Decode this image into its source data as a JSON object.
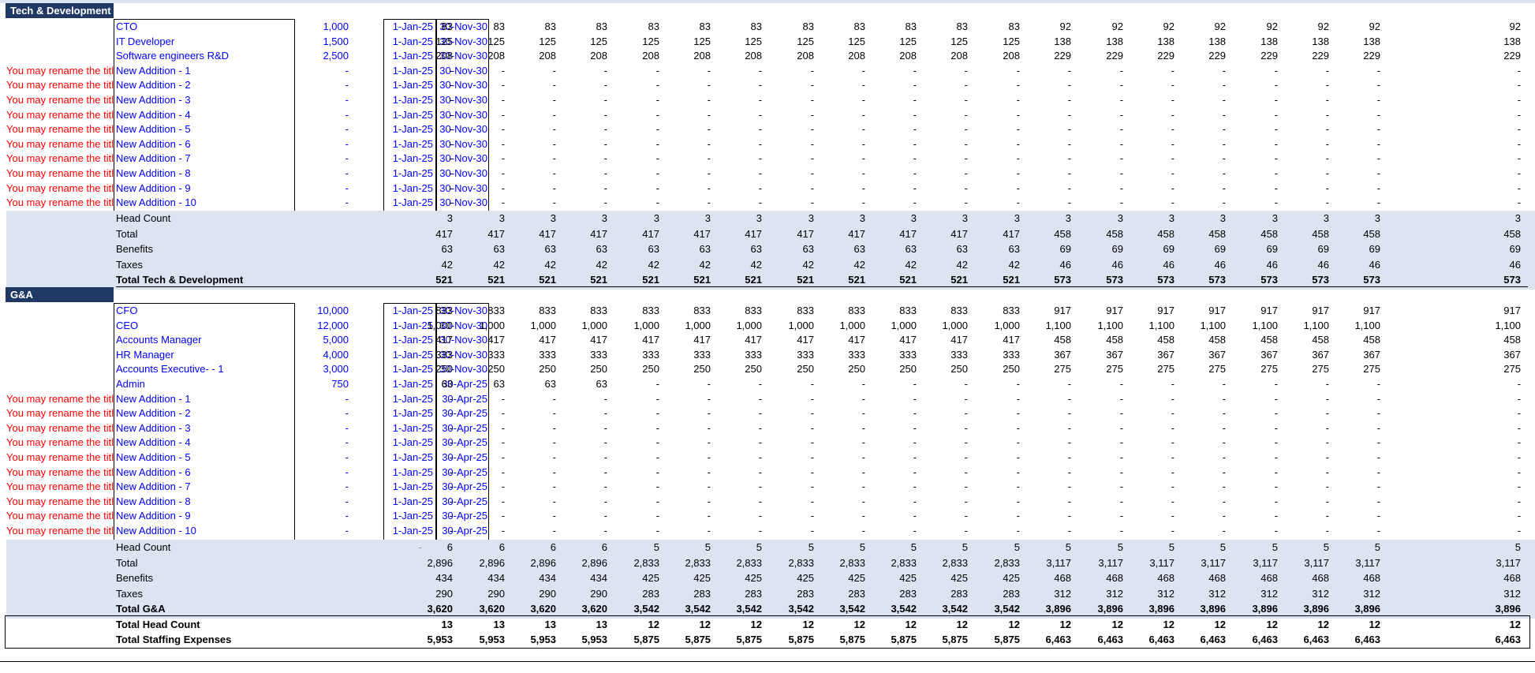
{
  "row_label_hint": "You may rename the title here",
  "sections": [
    {
      "title": "Tech & Development",
      "roles": [
        {
          "name": "CTO",
          "salary": "1,000",
          "start": "1-Jan-25",
          "end": "30-Nov-30",
          "values": [
            "83",
            "83",
            "83",
            "83",
            "83",
            "83",
            "83",
            "83",
            "83",
            "83",
            "83",
            "83",
            "92",
            "92",
            "92",
            "92",
            "92",
            "92",
            "92",
            "92"
          ]
        },
        {
          "name": "IT Developer",
          "salary": "1,500",
          "start": "1-Jan-25",
          "end": "30-Nov-30",
          "values": [
            "125",
            "125",
            "125",
            "125",
            "125",
            "125",
            "125",
            "125",
            "125",
            "125",
            "125",
            "125",
            "138",
            "138",
            "138",
            "138",
            "138",
            "138",
            "138",
            "138"
          ]
        },
        {
          "name": "Software engineers R&D",
          "salary": "2,500",
          "start": "1-Jan-25",
          "end": "30-Nov-30",
          "values": [
            "208",
            "208",
            "208",
            "208",
            "208",
            "208",
            "208",
            "208",
            "208",
            "208",
            "208",
            "208",
            "229",
            "229",
            "229",
            "229",
            "229",
            "229",
            "229",
            "229"
          ]
        },
        {
          "name": "New Addition - 1",
          "salary": "-",
          "start": "1-Jan-25",
          "end": "30-Nov-30",
          "hint": true
        },
        {
          "name": "New Addition - 2",
          "salary": "-",
          "start": "1-Jan-25",
          "end": "30-Nov-30",
          "hint": true
        },
        {
          "name": "New Addition - 3",
          "salary": "-",
          "start": "1-Jan-25",
          "end": "30-Nov-30",
          "hint": true
        },
        {
          "name": "New Addition - 4",
          "salary": "-",
          "start": "1-Jan-25",
          "end": "30-Nov-30",
          "hint": true
        },
        {
          "name": "New Addition - 5",
          "salary": "-",
          "start": "1-Jan-25",
          "end": "30-Nov-30",
          "hint": true
        },
        {
          "name": "New Addition - 6",
          "salary": "-",
          "start": "1-Jan-25",
          "end": "30-Nov-30",
          "hint": true
        },
        {
          "name": "New Addition - 7",
          "salary": "-",
          "start": "1-Jan-25",
          "end": "30-Nov-30",
          "hint": true
        },
        {
          "name": "New Addition - 8",
          "salary": "-",
          "start": "1-Jan-25",
          "end": "30-Nov-30",
          "hint": true
        },
        {
          "name": "New Addition - 9",
          "salary": "-",
          "start": "1-Jan-25",
          "end": "30-Nov-30",
          "hint": true
        },
        {
          "name": "New Addition - 10",
          "salary": "-",
          "start": "1-Jan-25",
          "end": "30-Nov-30",
          "hint": true
        }
      ],
      "summary": [
        {
          "label": "Head Count",
          "values": [
            "3",
            "3",
            "3",
            "3",
            "3",
            "3",
            "3",
            "3",
            "3",
            "3",
            "3",
            "3",
            "3",
            "3",
            "3",
            "3",
            "3",
            "3",
            "3",
            "3"
          ]
        },
        {
          "label": "Total",
          "values": [
            "417",
            "417",
            "417",
            "417",
            "417",
            "417",
            "417",
            "417",
            "417",
            "417",
            "417",
            "417",
            "458",
            "458",
            "458",
            "458",
            "458",
            "458",
            "458",
            "458"
          ]
        },
        {
          "label": "Benefits",
          "values": [
            "63",
            "63",
            "63",
            "63",
            "63",
            "63",
            "63",
            "63",
            "63",
            "63",
            "63",
            "63",
            "69",
            "69",
            "69",
            "69",
            "69",
            "69",
            "69",
            "69"
          ]
        },
        {
          "label": "Taxes",
          "values": [
            "42",
            "42",
            "42",
            "42",
            "42",
            "42",
            "42",
            "42",
            "42",
            "42",
            "42",
            "42",
            "46",
            "46",
            "46",
            "46",
            "46",
            "46",
            "46",
            "46"
          ]
        },
        {
          "label": "Total Tech & Development",
          "bold": true,
          "values": [
            "521",
            "521",
            "521",
            "521",
            "521",
            "521",
            "521",
            "521",
            "521",
            "521",
            "521",
            "521",
            "573",
            "573",
            "573",
            "573",
            "573",
            "573",
            "573",
            "573"
          ]
        }
      ]
    },
    {
      "title": "G&A",
      "roles": [
        {
          "name": "CFO",
          "salary": "10,000",
          "start": "1-Jan-25",
          "end": "30-Nov-30",
          "values": [
            "833",
            "833",
            "833",
            "833",
            "833",
            "833",
            "833",
            "833",
            "833",
            "833",
            "833",
            "833",
            "917",
            "917",
            "917",
            "917",
            "917",
            "917",
            "917",
            "917"
          ]
        },
        {
          "name": "CEO",
          "salary": "12,000",
          "start": "1-Jan-25",
          "end": "30-Nov-30",
          "values": [
            "1,000",
            "1,000",
            "1,000",
            "1,000",
            "1,000",
            "1,000",
            "1,000",
            "1,000",
            "1,000",
            "1,000",
            "1,000",
            "1,000",
            "1,100",
            "1,100",
            "1,100",
            "1,100",
            "1,100",
            "1,100",
            "1,100",
            "1,100"
          ]
        },
        {
          "name": "Accounts Manager",
          "salary": "5,000",
          "start": "1-Jan-25",
          "end": "30-Nov-30",
          "values": [
            "417",
            "417",
            "417",
            "417",
            "417",
            "417",
            "417",
            "417",
            "417",
            "417",
            "417",
            "417",
            "458",
            "458",
            "458",
            "458",
            "458",
            "458",
            "458",
            "458"
          ]
        },
        {
          "name": "HR Manager",
          "salary": "4,000",
          "start": "1-Jan-25",
          "end": "30-Nov-30",
          "values": [
            "333",
            "333",
            "333",
            "333",
            "333",
            "333",
            "333",
            "333",
            "333",
            "333",
            "333",
            "333",
            "367",
            "367",
            "367",
            "367",
            "367",
            "367",
            "367",
            "367"
          ]
        },
        {
          "name": "Accounts Executive- - 1",
          "salary": "3,000",
          "start": "1-Jan-25",
          "end": "30-Nov-30",
          "values": [
            "250",
            "250",
            "250",
            "250",
            "250",
            "250",
            "250",
            "250",
            "250",
            "250",
            "250",
            "250",
            "275",
            "275",
            "275",
            "275",
            "275",
            "275",
            "275",
            "275"
          ]
        },
        {
          "name": "Admin",
          "salary": "750",
          "start": "1-Jan-25",
          "end": "30-Apr-25",
          "values": [
            "63",
            "63",
            "63",
            "63"
          ]
        },
        {
          "name": "New Addition - 1",
          "salary": "-",
          "start": "1-Jan-25",
          "end": "30-Apr-25",
          "hint": true
        },
        {
          "name": "New Addition - 2",
          "salary": "-",
          "start": "1-Jan-25",
          "end": "30-Apr-25",
          "hint": true
        },
        {
          "name": "New Addition - 3",
          "salary": "-",
          "start": "1-Jan-25",
          "end": "30-Apr-25",
          "hint": true
        },
        {
          "name": "New Addition - 4",
          "salary": "-",
          "start": "1-Jan-25",
          "end": "30-Apr-25",
          "hint": true
        },
        {
          "name": "New Addition - 5",
          "salary": "-",
          "start": "1-Jan-25",
          "end": "30-Apr-25",
          "hint": true
        },
        {
          "name": "New Addition - 6",
          "salary": "-",
          "start": "1-Jan-25",
          "end": "30-Apr-25",
          "hint": true
        },
        {
          "name": "New Addition - 7",
          "salary": "-",
          "start": "1-Jan-25",
          "end": "30-Apr-25",
          "hint": true
        },
        {
          "name": "New Addition - 8",
          "salary": "-",
          "start": "1-Jan-25",
          "end": "30-Apr-25",
          "hint": true
        },
        {
          "name": "New Addition - 9",
          "salary": "-",
          "start": "1-Jan-25",
          "end": "30-Apr-25",
          "hint": true
        },
        {
          "name": "New Addition - 10",
          "salary": "-",
          "start": "1-Jan-25",
          "end": "30-Apr-25",
          "hint": true
        }
      ],
      "summary": [
        {
          "label": "Head Count",
          "mid": "-",
          "values": [
            "6",
            "6",
            "6",
            "6",
            "5",
            "5",
            "5",
            "5",
            "5",
            "5",
            "5",
            "5",
            "5",
            "5",
            "5",
            "5",
            "5",
            "5",
            "5",
            "5"
          ]
        },
        {
          "label": "Total",
          "values": [
            "2,896",
            "2,896",
            "2,896",
            "2,896",
            "2,833",
            "2,833",
            "2,833",
            "2,833",
            "2,833",
            "2,833",
            "2,833",
            "2,833",
            "3,117",
            "3,117",
            "3,117",
            "3,117",
            "3,117",
            "3,117",
            "3,117",
            "3,117"
          ]
        },
        {
          "label": "Benefits",
          "values": [
            "434",
            "434",
            "434",
            "434",
            "425",
            "425",
            "425",
            "425",
            "425",
            "425",
            "425",
            "425",
            "468",
            "468",
            "468",
            "468",
            "468",
            "468",
            "468",
            "468"
          ]
        },
        {
          "label": "Taxes",
          "values": [
            "290",
            "290",
            "290",
            "290",
            "283",
            "283",
            "283",
            "283",
            "283",
            "283",
            "283",
            "283",
            "312",
            "312",
            "312",
            "312",
            "312",
            "312",
            "312",
            "312"
          ]
        },
        {
          "label": "Total G&A",
          "bold": true,
          "values": [
            "3,620",
            "3,620",
            "3,620",
            "3,620",
            "3,542",
            "3,542",
            "3,542",
            "3,542",
            "3,542",
            "3,542",
            "3,542",
            "3,542",
            "3,896",
            "3,896",
            "3,896",
            "3,896",
            "3,896",
            "3,896",
            "3,896",
            "3,896"
          ]
        }
      ]
    }
  ],
  "grand_totals": [
    {
      "label": "Total Head Count",
      "values": [
        "13",
        "13",
        "13",
        "13",
        "12",
        "12",
        "12",
        "12",
        "12",
        "12",
        "12",
        "12",
        "12",
        "12",
        "12",
        "12",
        "12",
        "12",
        "12",
        "12"
      ]
    },
    {
      "label": "Total Staffing Expenses",
      "values": [
        "5,953",
        "5,953",
        "5,953",
        "5,953",
        "5,875",
        "5,875",
        "5,875",
        "5,875",
        "5,875",
        "5,875",
        "5,875",
        "5,875",
        "6,463",
        "6,463",
        "6,463",
        "6,463",
        "6,463",
        "6,463",
        "6,463",
        "6,463"
      ]
    }
  ]
}
